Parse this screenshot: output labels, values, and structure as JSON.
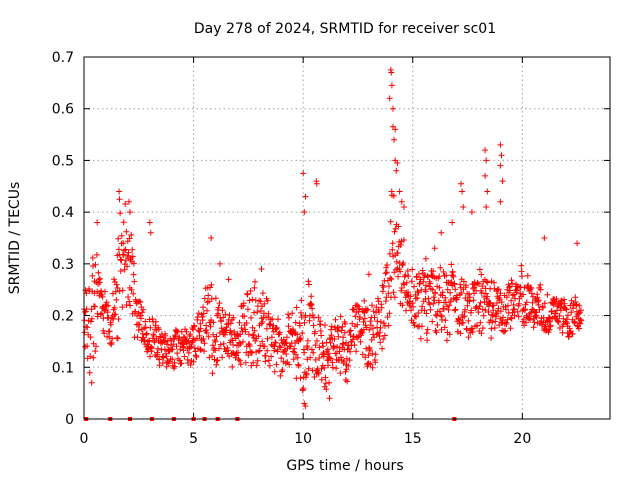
{
  "chart_data": {
    "type": "scatter",
    "title": "Day 278 of 2024, SRMTID for receiver sc01",
    "xlabel": "GPS time / hours",
    "ylabel": "SRMTID / TECUs",
    "xlim": [
      0,
      24
    ],
    "ylim": [
      0,
      0.7
    ],
    "xticks": [
      0,
      5,
      10,
      15,
      20
    ],
    "yticks": [
      0,
      0.1,
      0.2,
      0.3,
      0.4,
      0.5,
      0.6,
      0.7
    ],
    "grid": true,
    "marker": "plus",
    "color": "#ff0000",
    "envelope": [
      [
        0.0,
        0.09,
        0.25
      ],
      [
        0.4,
        0.08,
        0.36
      ],
      [
        0.8,
        0.15,
        0.32
      ],
      [
        1.2,
        0.12,
        0.2
      ],
      [
        1.6,
        0.14,
        0.44
      ],
      [
        2.0,
        0.18,
        0.42
      ],
      [
        2.4,
        0.15,
        0.26
      ],
      [
        2.8,
        0.13,
        0.2
      ],
      [
        3.2,
        0.11,
        0.2
      ],
      [
        3.6,
        0.1,
        0.18
      ],
      [
        4.0,
        0.09,
        0.16
      ],
      [
        4.4,
        0.09,
        0.2
      ],
      [
        4.8,
        0.1,
        0.18
      ],
      [
        5.2,
        0.1,
        0.22
      ],
      [
        5.6,
        0.1,
        0.27
      ],
      [
        6.0,
        0.08,
        0.26
      ],
      [
        6.4,
        0.09,
        0.22
      ],
      [
        6.8,
        0.1,
        0.21
      ],
      [
        7.2,
        0.1,
        0.22
      ],
      [
        7.6,
        0.1,
        0.26
      ],
      [
        8.0,
        0.08,
        0.28
      ],
      [
        8.4,
        0.08,
        0.24
      ],
      [
        8.8,
        0.08,
        0.2
      ],
      [
        9.2,
        0.08,
        0.2
      ],
      [
        9.6,
        0.08,
        0.22
      ],
      [
        10.0,
        0.04,
        0.3
      ],
      [
        10.4,
        0.05,
        0.25
      ],
      [
        10.8,
        0.06,
        0.2
      ],
      [
        11.2,
        0.05,
        0.18
      ],
      [
        11.6,
        0.07,
        0.2
      ],
      [
        12.0,
        0.07,
        0.22
      ],
      [
        12.4,
        0.08,
        0.24
      ],
      [
        12.8,
        0.08,
        0.26
      ],
      [
        13.2,
        0.1,
        0.22
      ],
      [
        13.6,
        0.12,
        0.25
      ],
      [
        14.0,
        0.2,
        0.45
      ],
      [
        14.4,
        0.18,
        0.4
      ],
      [
        14.8,
        0.2,
        0.3
      ],
      [
        15.2,
        0.14,
        0.28
      ],
      [
        15.6,
        0.15,
        0.3
      ],
      [
        16.0,
        0.15,
        0.32
      ],
      [
        16.4,
        0.13,
        0.3
      ],
      [
        16.8,
        0.17,
        0.3
      ],
      [
        17.2,
        0.16,
        0.28
      ],
      [
        17.6,
        0.14,
        0.25
      ],
      [
        18.0,
        0.16,
        0.3
      ],
      [
        18.4,
        0.16,
        0.28
      ],
      [
        18.8,
        0.15,
        0.27
      ],
      [
        19.2,
        0.16,
        0.26
      ],
      [
        19.6,
        0.17,
        0.28
      ],
      [
        20.0,
        0.18,
        0.3
      ],
      [
        20.4,
        0.17,
        0.27
      ],
      [
        20.8,
        0.17,
        0.26
      ],
      [
        21.2,
        0.16,
        0.25
      ],
      [
        21.6,
        0.17,
        0.24
      ],
      [
        22.0,
        0.16,
        0.24
      ],
      [
        22.4,
        0.15,
        0.24
      ],
      [
        22.7,
        0.15,
        0.22
      ]
    ],
    "spikes": [
      [
        0.6,
        0.38
      ],
      [
        0.35,
        0.07
      ],
      [
        1.6,
        0.44
      ],
      [
        1.62,
        0.425
      ],
      [
        2.05,
        0.42
      ],
      [
        2.1,
        0.4
      ],
      [
        3.0,
        0.38
      ],
      [
        3.05,
        0.36
      ],
      [
        5.8,
        0.35
      ],
      [
        6.2,
        0.3
      ],
      [
        6.6,
        0.27
      ],
      [
        8.1,
        0.29
      ],
      [
        10.0,
        0.475
      ],
      [
        10.1,
        0.43
      ],
      [
        10.05,
        0.4
      ],
      [
        10.6,
        0.46
      ],
      [
        10.62,
        0.455
      ],
      [
        10.05,
        0.03
      ],
      [
        10.1,
        0.025
      ],
      [
        11.2,
        0.04
      ],
      [
        13.0,
        0.28
      ],
      [
        14.0,
        0.675
      ],
      [
        14.02,
        0.67
      ],
      [
        14.05,
        0.645
      ],
      [
        14.1,
        0.6
      ],
      [
        13.95,
        0.62
      ],
      [
        14.1,
        0.565
      ],
      [
        14.2,
        0.56
      ],
      [
        14.15,
        0.54
      ],
      [
        14.2,
        0.5
      ],
      [
        14.3,
        0.495
      ],
      [
        14.25,
        0.48
      ],
      [
        14.4,
        0.44
      ],
      [
        14.5,
        0.42
      ],
      [
        14.6,
        0.41
      ],
      [
        15.6,
        0.31
      ],
      [
        16.0,
        0.33
      ],
      [
        16.3,
        0.36
      ],
      [
        16.8,
        0.38
      ],
      [
        17.2,
        0.455
      ],
      [
        17.25,
        0.44
      ],
      [
        17.3,
        0.41
      ],
      [
        17.7,
        0.4
      ],
      [
        18.3,
        0.52
      ],
      [
        18.35,
        0.5
      ],
      [
        18.3,
        0.47
      ],
      [
        18.4,
        0.44
      ],
      [
        18.35,
        0.41
      ],
      [
        19.0,
        0.53
      ],
      [
        19.05,
        0.51
      ],
      [
        19.0,
        0.49
      ],
      [
        19.1,
        0.46
      ],
      [
        19.0,
        0.42
      ],
      [
        21.0,
        0.35
      ],
      [
        22.5,
        0.34
      ]
    ],
    "zero_markers": [
      0.1,
      1.2,
      2.1,
      3.1,
      4.1,
      5.0,
      5.5,
      6.1,
      7.0,
      16.9
    ]
  }
}
